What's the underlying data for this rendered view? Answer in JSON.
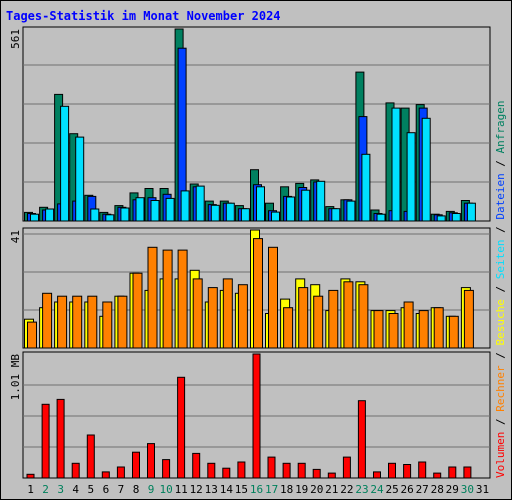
{
  "title": "Tages-Statistik im Monat November 2024",
  "colors": {
    "background": "#c0c0c0",
    "plot": "#c0c0c0",
    "title": "#0000ff",
    "anfragen": "#008060",
    "dateien": "#0040ff",
    "seiten": "#00e0ff",
    "besuche": "#ffff00",
    "rechner": "#ff8000",
    "volumen": "#ff0000",
    "weekday": "#000000",
    "weekend": "#00805c"
  },
  "chart_data": [
    {
      "type": "bar",
      "name": "requests-panel",
      "y_max_label": "561",
      "ylim": [
        0,
        561
      ],
      "grid": true,
      "categories": [
        "1",
        "2",
        "3",
        "4",
        "5",
        "6",
        "7",
        "8",
        "9",
        "10",
        "11",
        "12",
        "13",
        "14",
        "15",
        "16",
        "17",
        "18",
        "19",
        "20",
        "21",
        "22",
        "23",
        "24",
        "25",
        "26",
        "27",
        "28",
        "29",
        "30",
        "31"
      ],
      "series": [
        {
          "name": "Anfragen",
          "color": "#008060",
          "values": [
            25,
            40,
            370,
            255,
            75,
            25,
            45,
            82,
            95,
            95,
            561,
            108,
            58,
            58,
            45,
            150,
            52,
            100,
            110,
            120,
            42,
            62,
            435,
            32,
            345,
            330,
            340,
            20,
            28,
            60,
            0
          ]
        },
        {
          "name": "Dateien",
          "color": "#0040ff",
          "values": [
            22,
            32,
            50,
            58,
            72,
            20,
            40,
            62,
            68,
            78,
            505,
            100,
            48,
            52,
            36,
            106,
            30,
            72,
            98,
            114,
            36,
            62,
            305,
            22,
            30,
            28,
            330,
            18,
            24,
            52,
            0
          ]
        },
        {
          "name": "Seiten",
          "color": "#00e0ff",
          "values": [
            20,
            35,
            335,
            245,
            35,
            18,
            38,
            68,
            60,
            66,
            88,
            102,
            46,
            52,
            36,
            100,
            26,
            70,
            90,
            116,
            36,
            58,
            195,
            20,
            330,
            258,
            300,
            15,
            22,
            52,
            0
          ]
        }
      ]
    },
    {
      "type": "bar",
      "name": "visits-panel",
      "y_max_label": "41",
      "ylim": [
        0,
        41
      ],
      "grid": true,
      "categories": [
        "1",
        "2",
        "3",
        "4",
        "5",
        "6",
        "7",
        "8",
        "9",
        "10",
        "11",
        "12",
        "13",
        "14",
        "15",
        "16",
        "17",
        "18",
        "19",
        "20",
        "21",
        "22",
        "23",
        "24",
        "25",
        "26",
        "27",
        "28",
        "29",
        "30",
        "31"
      ],
      "series": [
        {
          "name": "Besuche",
          "color": "#ffff00",
          "values": [
            10,
            14,
            16,
            16,
            16,
            11,
            18,
            26,
            20,
            24,
            24,
            27,
            16,
            20,
            19,
            41,
            12,
            17,
            24,
            22,
            13,
            24,
            23,
            13,
            13,
            14,
            12,
            14,
            11,
            21,
            0
          ]
        },
        {
          "name": "Rechner",
          "color": "#ff8000",
          "values": [
            9,
            19,
            18,
            18,
            18,
            16,
            18,
            26,
            35,
            34,
            34,
            24,
            21,
            24,
            22,
            38,
            35,
            14,
            21,
            18,
            20,
            23,
            22,
            13,
            12,
            16,
            13,
            14,
            11,
            20,
            0
          ]
        }
      ]
    },
    {
      "type": "bar",
      "name": "volume-panel",
      "y_max_label": "1.01 MB",
      "ylim": [
        0,
        1.01
      ],
      "grid": true,
      "categories": [
        "1",
        "2",
        "3",
        "4",
        "5",
        "6",
        "7",
        "8",
        "9",
        "10",
        "11",
        "12",
        "13",
        "14",
        "15",
        "16",
        "17",
        "18",
        "19",
        "20",
        "21",
        "22",
        "23",
        "24",
        "25",
        "26",
        "27",
        "28",
        "29",
        "30",
        "31"
      ],
      "series": [
        {
          "name": "Volumen",
          "color": "#ff0000",
          "values": [
            0.03,
            0.6,
            0.64,
            0.12,
            0.35,
            0.05,
            0.09,
            0.21,
            0.28,
            0.15,
            0.82,
            0.2,
            0.12,
            0.08,
            0.13,
            1.01,
            0.17,
            0.12,
            0.12,
            0.07,
            0.04,
            0.17,
            0.63,
            0.05,
            0.12,
            0.11,
            0.13,
            0.04,
            0.09,
            0.09,
            0.0
          ]
        }
      ]
    }
  ],
  "days": {
    "labels": [
      "1",
      "2",
      "3",
      "4",
      "5",
      "6",
      "7",
      "8",
      "9",
      "10",
      "11",
      "12",
      "13",
      "14",
      "15",
      "16",
      "17",
      "18",
      "19",
      "20",
      "21",
      "22",
      "23",
      "24",
      "25",
      "26",
      "27",
      "28",
      "29",
      "30",
      "31"
    ],
    "weekend": [
      2,
      3,
      9,
      10,
      16,
      17,
      23,
      24,
      30
    ]
  },
  "legend": {
    "separator": " / ",
    "upper": [
      "Anfragen",
      "Dateien",
      "Seiten",
      "Besuche",
      "Rechner",
      "Volumen"
    ]
  }
}
